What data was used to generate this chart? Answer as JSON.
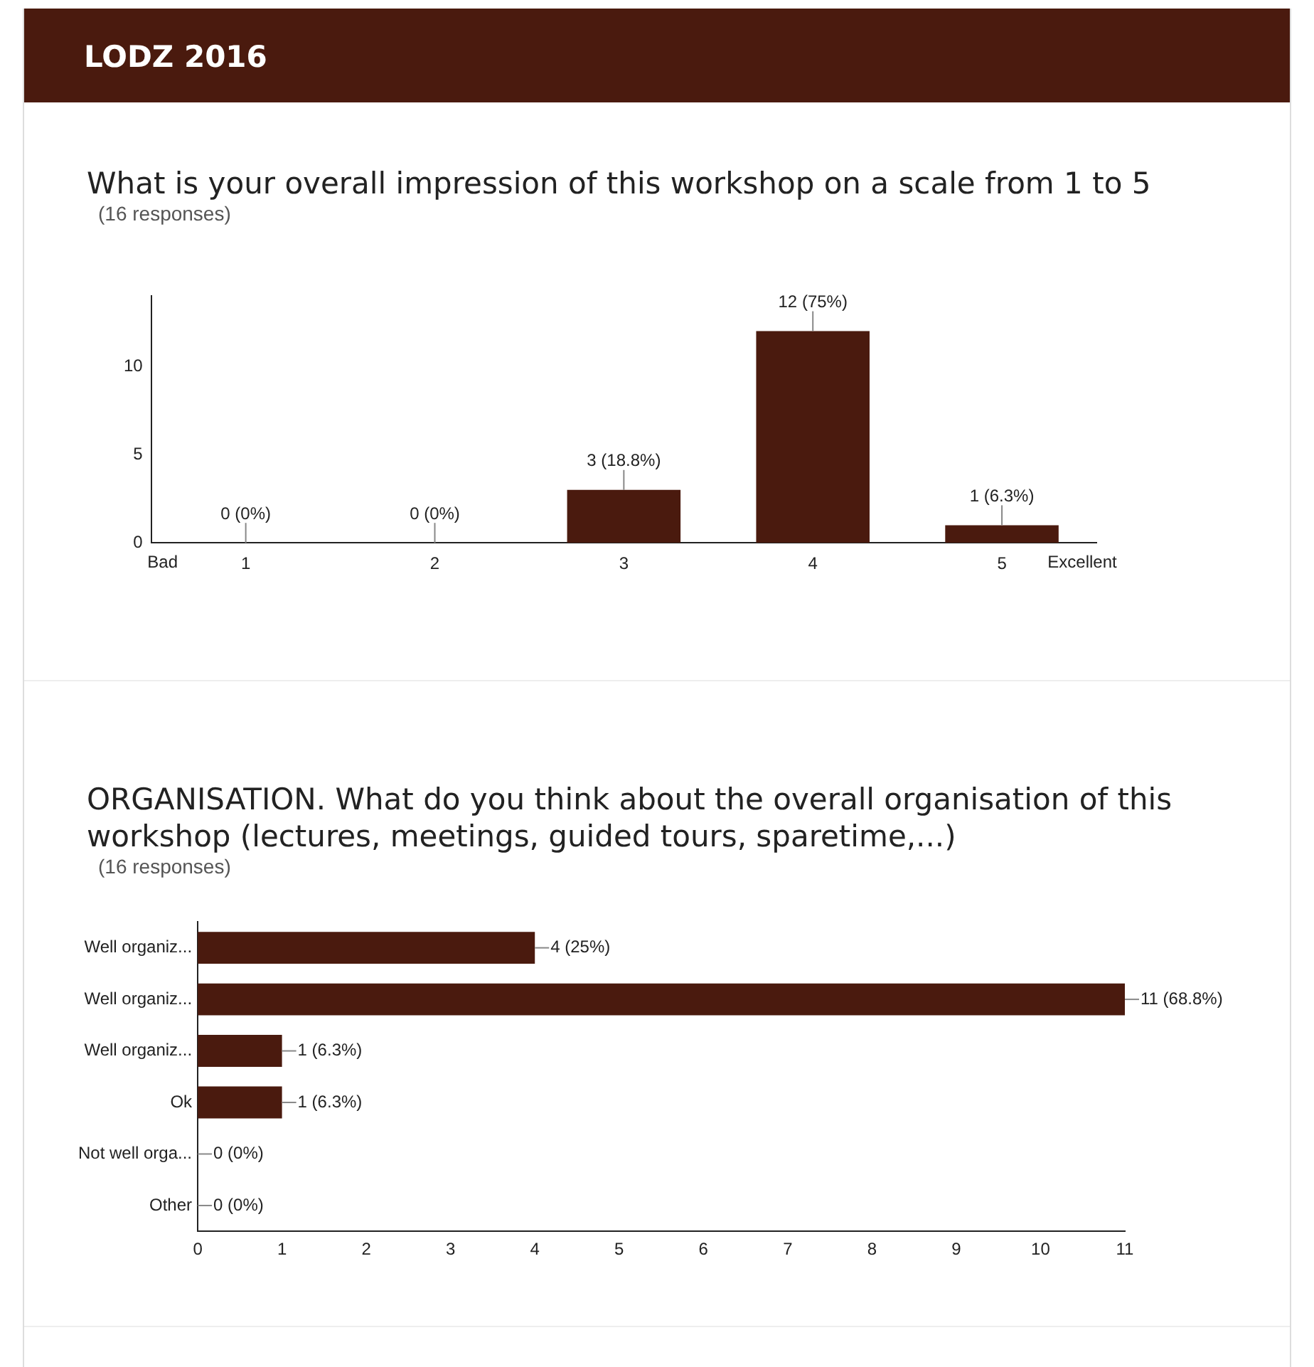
{
  "chart_data": [
    {
      "type": "bar",
      "title": "What is your overall impression of this workshop on a scale from 1 to 5",
      "subtitle": "(16 responses)",
      "annotations": [
        "LODZ 2016",
        "Bad",
        "Excellent"
      ],
      "categories": [
        "1",
        "2",
        "3",
        "4",
        "5"
      ],
      "values": [
        0,
        0,
        3,
        12,
        1
      ],
      "color": "#4a1a0e",
      "value_labels": [
        "0 (0%)",
        "0 (0%)",
        "3 (18.8%)",
        "12 (75%)",
        "1 (6.3%)"
      ],
      "ylim": [
        0,
        14
      ],
      "yticks": [
        0,
        5,
        10
      ],
      "grid": false,
      "legend": false
    },
    {
      "type": "bar",
      "orientation": "horizontal",
      "title": "ORGANISATION. What do you think about the overall organisation of this workshop (lectures, meetings, guided tours, sparetime,...)",
      "subtitle": "(16 responses)",
      "categories": [
        "Well organiz...",
        "Well organiz...",
        "Well organiz...",
        "Ok",
        "Not well orga...",
        "Other"
      ],
      "values": [
        4,
        11,
        1,
        1,
        0,
        0
      ],
      "color": "#4a1a0e",
      "value_labels": [
        "4 (25%)",
        "11 (68.8%)",
        "1 (6.3%)",
        "1 (6.3%)",
        "0 (0%)",
        "0 (0%)"
      ],
      "xlim": [
        0,
        11
      ],
      "xticks": [
        0,
        1,
        2,
        3,
        4,
        5,
        6,
        7,
        8,
        9,
        10,
        11
      ],
      "grid": false,
      "legend": false
    }
  ]
}
